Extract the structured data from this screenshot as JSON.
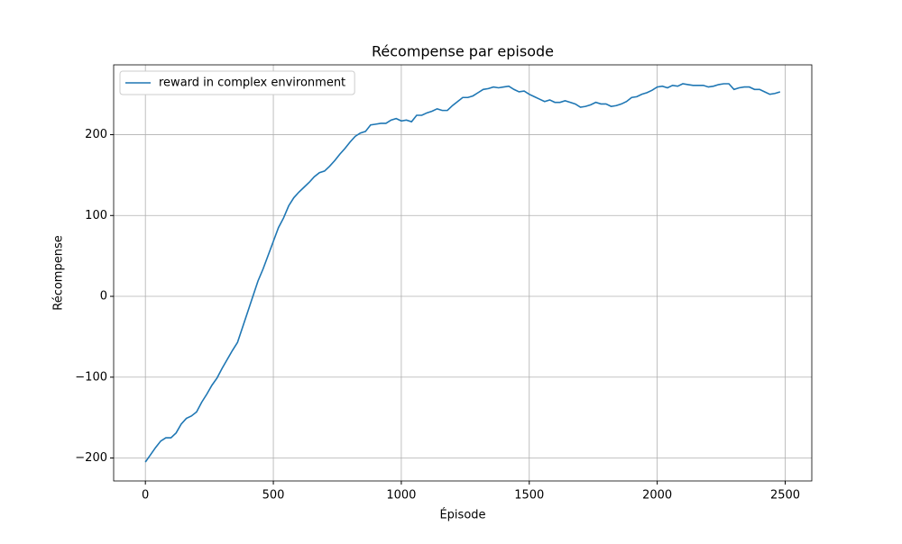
{
  "chart_data": {
    "type": "line",
    "title": "Récompense par episode",
    "xlabel": "Épisode",
    "ylabel": "Récompense",
    "x": [
      0,
      20,
      40,
      60,
      80,
      100,
      120,
      140,
      160,
      180,
      200,
      220,
      240,
      260,
      280,
      300,
      320,
      340,
      360,
      380,
      400,
      420,
      440,
      460,
      480,
      500,
      520,
      540,
      560,
      580,
      600,
      620,
      640,
      660,
      680,
      700,
      720,
      740,
      760,
      780,
      800,
      820,
      840,
      860,
      880,
      900,
      920,
      940,
      960,
      980,
      1000,
      1020,
      1040,
      1060,
      1080,
      1100,
      1120,
      1140,
      1160,
      1180,
      1200,
      1220,
      1240,
      1260,
      1280,
      1300,
      1320,
      1340,
      1360,
      1380,
      1400,
      1420,
      1440,
      1460,
      1480,
      1500,
      1520,
      1540,
      1560,
      1580,
      1600,
      1620,
      1640,
      1660,
      1680,
      1700,
      1720,
      1740,
      1760,
      1780,
      1800,
      1820,
      1840,
      1860,
      1880,
      1900,
      1920,
      1940,
      1960,
      1980,
      2000,
      2020,
      2040,
      2060,
      2080,
      2100,
      2120,
      2140,
      2160,
      2180,
      2200,
      2220,
      2240,
      2260,
      2280,
      2300,
      2320,
      2340,
      2360,
      2380,
      2400,
      2420,
      2440,
      2460,
      2480
    ],
    "series": [
      {
        "name": "reward in complex environment",
        "color": "#1f77b4",
        "values": [
          -205,
          -196,
          -187,
          -179,
          -175,
          -175,
          -169,
          -158,
          -151,
          -148,
          -143,
          -131,
          -121,
          -110,
          -101,
          -89,
          -78,
          -67,
          -57,
          -38,
          -19,
          0,
          19,
          34,
          51,
          68,
          85,
          97,
          112,
          122,
          129,
          135,
          141,
          148,
          153,
          155,
          161,
          168,
          176,
          183,
          191,
          198,
          202,
          204,
          212,
          213,
          214,
          214,
          218,
          220,
          217,
          218,
          216,
          224,
          224,
          227,
          229,
          232,
          230,
          230,
          236,
          241,
          246,
          246,
          248,
          252,
          256,
          257,
          259,
          258,
          259,
          260,
          256,
          253,
          254,
          250,
          247,
          244,
          241,
          243,
          240,
          240,
          242,
          240,
          238,
          234,
          235,
          237,
          240,
          238,
          238,
          235,
          236,
          238,
          241,
          246,
          247,
          250,
          252,
          255,
          259,
          260,
          258,
          261,
          260,
          263,
          262,
          261,
          261,
          261,
          259,
          260,
          262,
          263,
          263,
          256,
          258,
          259,
          259,
          256,
          256,
          253,
          250,
          251,
          253
        ]
      }
    ],
    "xlim": [
      -124,
      2604
    ],
    "ylim": [
      -228.4,
      286.4
    ],
    "xticks": [
      0,
      500,
      1000,
      1500,
      2000,
      2500
    ],
    "yticks": [
      {
        "value": -200,
        "label": "−200"
      },
      {
        "value": -100,
        "label": "−100"
      },
      0,
      100,
      200
    ],
    "grid": true,
    "legend": "upper-left"
  }
}
